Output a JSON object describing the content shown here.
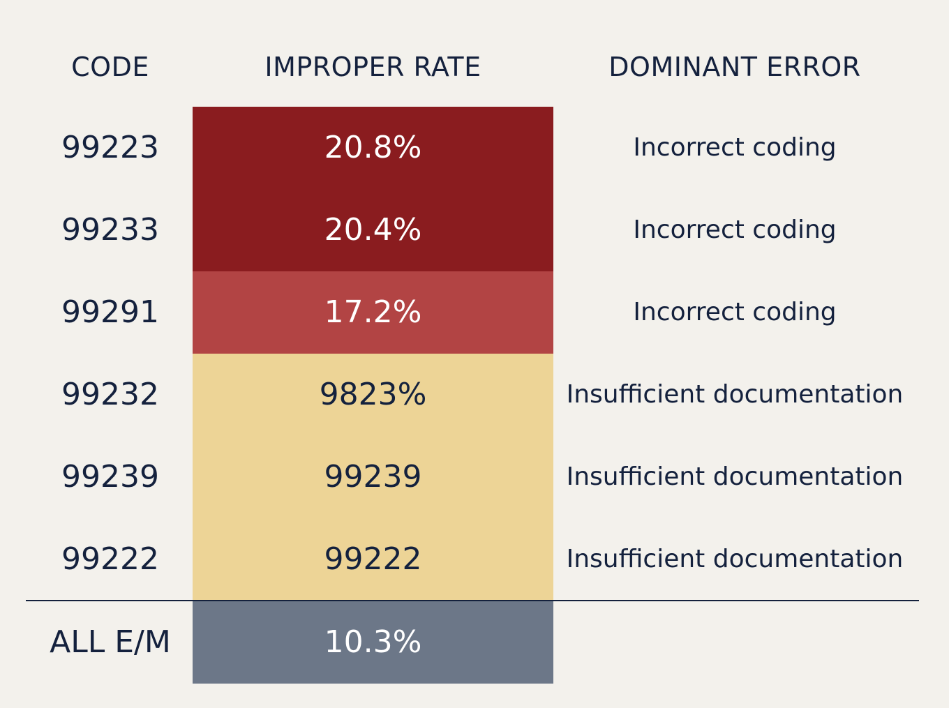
{
  "chart_data": {
    "type": "table",
    "columns": [
      "CODE",
      "IMPROPER RATE",
      "DOMINANT ERROR"
    ],
    "rows": [
      {
        "code": "99223",
        "rate": "20.8%",
        "error": "Incorrect coding",
        "level": "high"
      },
      {
        "code": "99233",
        "rate": "20.4%",
        "error": "Incorrect coding",
        "level": "high"
      },
      {
        "code": "99291",
        "rate": "17.2%",
        "error": "Incorrect coding",
        "level": "mid"
      },
      {
        "code": "99232",
        "rate": "9823%",
        "error": "Insufficient documentation",
        "level": "low"
      },
      {
        "code": "99239",
        "rate": "99239",
        "error": "Insufficient documentation",
        "level": "low"
      },
      {
        "code": "99222",
        "rate": "99222",
        "error": "Insufficient documentation",
        "level": "low"
      }
    ],
    "total": {
      "code": "ALL E/M",
      "rate": "10.3%",
      "error": ""
    },
    "colors": {
      "high": "#8a1c1f",
      "mid": "#b24444",
      "low": "#edd496",
      "total": "#6c7788",
      "text": "#14213d",
      "background": "#f3f1ec"
    }
  }
}
